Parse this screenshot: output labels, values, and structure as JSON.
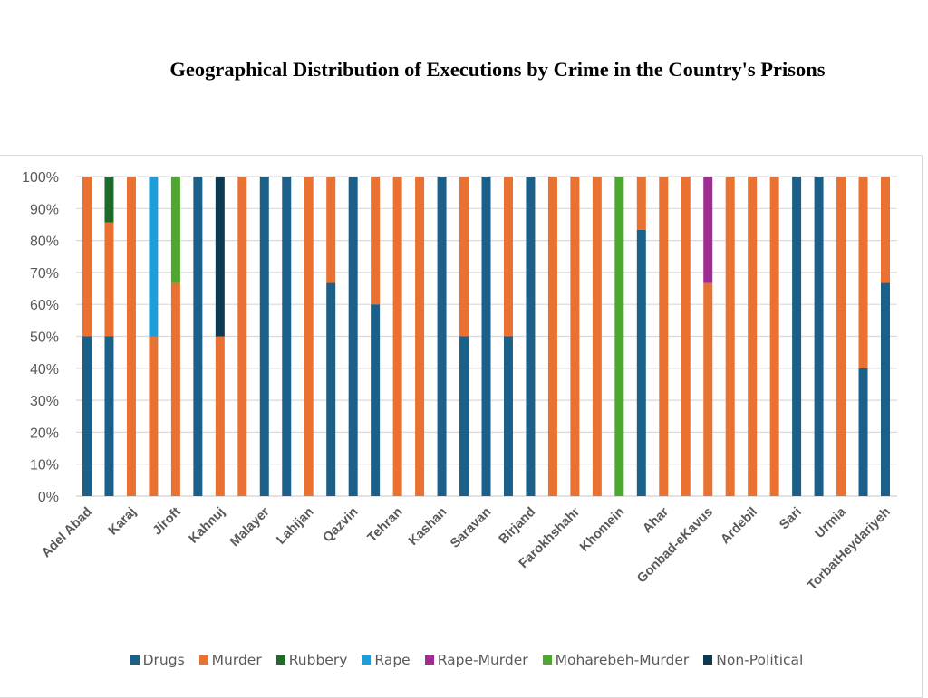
{
  "chart_data": {
    "type": "bar",
    "stacked": "percent",
    "title": "Geographical Distribution of Executions by Crime in the Country's Prisons",
    "xlabel": "",
    "ylabel": "",
    "ylim": [
      0,
      100
    ],
    "yticks": [
      "0%",
      "10%",
      "20%",
      "30%",
      "40%",
      "50%",
      "60%",
      "70%",
      "80%",
      "90%",
      "100%"
    ],
    "grid": true,
    "legend_position": "bottom",
    "categories": [
      "Adel Abad",
      "",
      "Karaj",
      "",
      "Jiroft",
      "",
      "Kahnuj",
      "",
      "Malayer",
      "",
      "Lahijan",
      "",
      "Qazvin",
      "",
      "Tehran",
      "",
      "Kashan",
      "",
      "Saravan",
      "",
      "Birjand",
      "",
      "Farokhshahr",
      "",
      "Khomein",
      "",
      "Ahar",
      "",
      "Gonbad-eKavus",
      "",
      "Ardebil",
      "",
      "Sari",
      "",
      "Urmia",
      "",
      "TorbatHeydariyeh"
    ],
    "series": [
      {
        "name": "Drugs",
        "color": "#1b6088",
        "values": [
          50,
          50,
          0,
          0,
          0,
          100,
          0,
          0,
          100,
          100,
          0,
          66.7,
          100,
          60,
          0,
          0,
          100,
          50,
          100,
          50,
          100,
          0,
          0,
          0,
          0,
          83.3,
          0,
          0,
          0,
          0,
          0,
          0,
          100,
          100,
          0,
          40,
          66.7
        ]
      },
      {
        "name": "Murder",
        "color": "#e97132",
        "values": [
          50,
          35.7,
          100,
          50,
          66.7,
          0,
          50,
          100,
          0,
          0,
          100,
          33.3,
          0,
          40,
          100,
          100,
          0,
          50,
          0,
          50,
          0,
          100,
          100,
          100,
          0,
          16.7,
          100,
          100,
          66.7,
          100,
          100,
          100,
          0,
          0,
          100,
          60,
          33.3
        ]
      },
      {
        "name": "Rubbery",
        "color": "#1e6b2b",
        "values": [
          0,
          14.3,
          0,
          0,
          0,
          0,
          0,
          0,
          0,
          0,
          0,
          0,
          0,
          0,
          0,
          0,
          0,
          0,
          0,
          0,
          0,
          0,
          0,
          0,
          0,
          0,
          0,
          0,
          0,
          0,
          0,
          0,
          0,
          0,
          0,
          0,
          0
        ]
      },
      {
        "name": "Rape",
        "color": "#1f9dd8",
        "values": [
          0,
          0,
          0,
          50,
          0,
          0,
          0,
          0,
          0,
          0,
          0,
          0,
          0,
          0,
          0,
          0,
          0,
          0,
          0,
          0,
          0,
          0,
          0,
          0,
          0,
          0,
          0,
          0,
          0,
          0,
          0,
          0,
          0,
          0,
          0,
          0,
          0
        ]
      },
      {
        "name": "Rape-Murder",
        "color": "#a02b93",
        "values": [
          0,
          0,
          0,
          0,
          0,
          0,
          0,
          0,
          0,
          0,
          0,
          0,
          0,
          0,
          0,
          0,
          0,
          0,
          0,
          0,
          0,
          0,
          0,
          0,
          0,
          0,
          0,
          0,
          33.3,
          0,
          0,
          0,
          0,
          0,
          0,
          0,
          0
        ]
      },
      {
        "name": "Moharebeh-Murder",
        "color": "#4ea72e",
        "values": [
          0,
          0,
          0,
          0,
          33.3,
          0,
          0,
          0,
          0,
          0,
          0,
          0,
          0,
          0,
          0,
          0,
          0,
          0,
          0,
          0,
          0,
          0,
          0,
          0,
          100,
          0,
          0,
          0,
          0,
          0,
          0,
          0,
          0,
          0,
          0,
          0,
          0
        ]
      },
      {
        "name": "Non-Political",
        "color": "#0e3a51",
        "values": [
          0,
          0,
          0,
          0,
          0,
          0,
          50,
          0,
          0,
          0,
          0,
          0,
          0,
          0,
          0,
          0,
          0,
          0,
          0,
          0,
          0,
          0,
          0,
          0,
          0,
          0,
          0,
          0,
          0,
          0,
          0,
          0,
          0,
          0,
          0,
          0,
          0
        ]
      }
    ]
  }
}
